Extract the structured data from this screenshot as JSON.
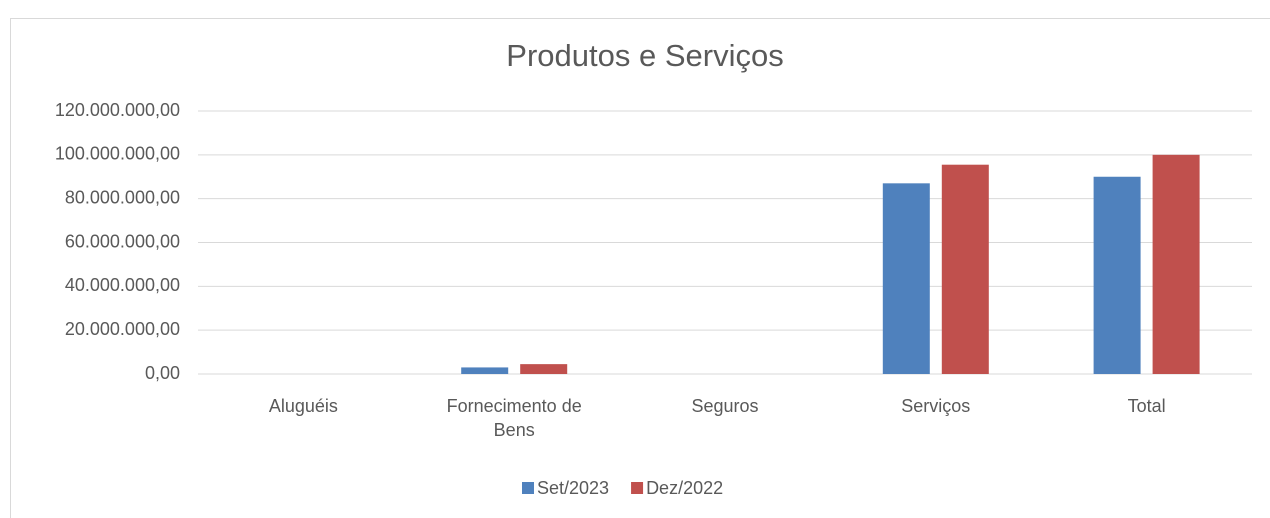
{
  "chart_data": {
    "type": "bar",
    "title": "Produtos e Serviços",
    "categories": [
      "Aluguéis",
      "Fornecimento de Bens",
      "Seguros",
      "Serviços",
      "Total"
    ],
    "series": [
      {
        "name": "Set/2023",
        "color": "#4f81bd",
        "values": [
          0,
          3000000,
          0,
          87000000,
          90000000
        ]
      },
      {
        "name": "Dez/2022",
        "color": "#c0504d",
        "values": [
          0,
          4500000,
          0,
          95500000,
          100000000
        ]
      }
    ],
    "ylim": [
      0,
      120000000
    ],
    "yticks": [
      {
        "value": 0,
        "label": "0,00"
      },
      {
        "value": 20000000,
        "label": "20.000.000,00"
      },
      {
        "value": 40000000,
        "label": "40.000.000,00"
      },
      {
        "value": 60000000,
        "label": "60.000.000,00"
      },
      {
        "value": 80000000,
        "label": "80.000.000,00"
      },
      {
        "value": 100000000,
        "label": "100.000.000,00"
      },
      {
        "value": 120000000,
        "label": "120.000.000,00"
      }
    ],
    "grid": true,
    "legend": "bottom"
  }
}
